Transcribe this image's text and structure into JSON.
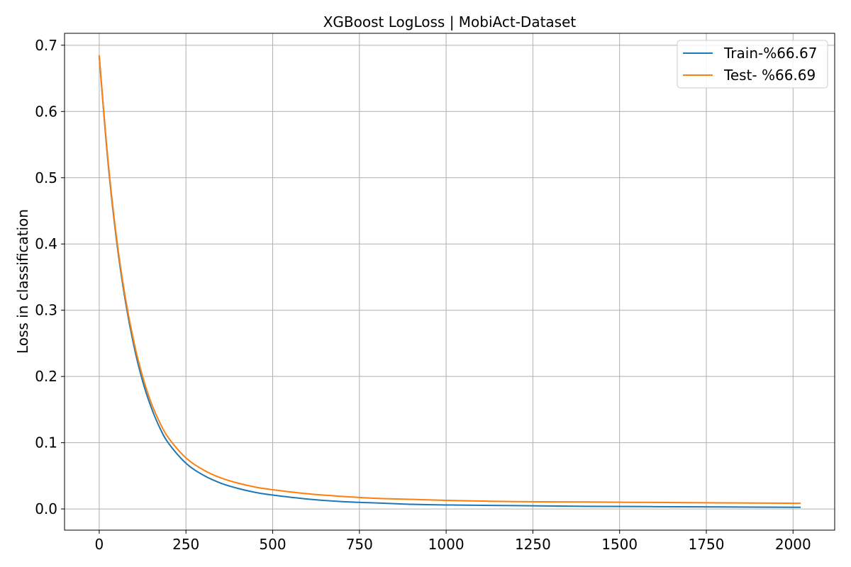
{
  "chart_data": {
    "type": "line",
    "title": "XGBoost LogLoss | MobiAct-Dataset",
    "xlabel": "",
    "ylabel": "Loss in classification",
    "xlim": [
      -100,
      2120
    ],
    "ylim": [
      -0.032,
      0.718
    ],
    "xticks": [
      0,
      250,
      500,
      750,
      1000,
      1250,
      1500,
      1750,
      2000
    ],
    "yticks": [
      0.0,
      0.1,
      0.2,
      0.3,
      0.4,
      0.5,
      0.6,
      0.7
    ],
    "ytick_labels": [
      "0.0",
      "0.1",
      "0.2",
      "0.3",
      "0.4",
      "0.5",
      "0.6",
      "0.7"
    ],
    "grid": true,
    "legend_position": "top-right",
    "series": [
      {
        "name": "Train-%66.67",
        "color": "#1f77b4",
        "x": [
          0,
          25,
          50,
          75,
          100,
          125,
          150,
          175,
          200,
          250,
          300,
          350,
          400,
          450,
          500,
          600,
          700,
          800,
          900,
          1000,
          1200,
          1400,
          1600,
          1800,
          2020
        ],
        "y": [
          0.683,
          0.525,
          0.405,
          0.315,
          0.246,
          0.193,
          0.153,
          0.122,
          0.099,
          0.069,
          0.051,
          0.039,
          0.031,
          0.025,
          0.021,
          0.015,
          0.011,
          0.009,
          0.007,
          0.006,
          0.005,
          0.004,
          0.0035,
          0.003,
          0.0025
        ]
      },
      {
        "name": "Test- %66.69",
        "color": "#ff7f0e",
        "x": [
          0,
          25,
          50,
          75,
          100,
          125,
          150,
          175,
          200,
          250,
          300,
          350,
          400,
          450,
          500,
          600,
          700,
          800,
          900,
          1000,
          1200,
          1400,
          1600,
          1800,
          2020
        ],
        "y": [
          0.684,
          0.528,
          0.409,
          0.32,
          0.252,
          0.2,
          0.16,
          0.13,
          0.107,
          0.077,
          0.059,
          0.047,
          0.039,
          0.033,
          0.029,
          0.023,
          0.019,
          0.016,
          0.0145,
          0.013,
          0.011,
          0.0105,
          0.0098,
          0.0092,
          0.0085
        ]
      }
    ]
  }
}
